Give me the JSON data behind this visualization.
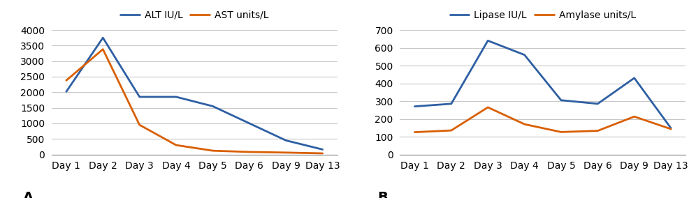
{
  "days": [
    "Day 1",
    "Day 2",
    "Day 3",
    "Day 4",
    "Day 5",
    "Day 6",
    "Day 9",
    "Day 13"
  ],
  "panel_A": {
    "ALT": [
      2020,
      3750,
      1850,
      1850,
      1550,
      1000,
      450,
      160
    ],
    "AST": [
      2380,
      3380,
      950,
      300,
      120,
      80,
      60,
      35
    ],
    "ALT_color": "#2e5fa3",
    "AST_color": "#d95f02",
    "ALT_label": "ALT IU/L",
    "AST_label": "AST units/L",
    "yticks": [
      0,
      500,
      1000,
      1500,
      2000,
      2500,
      3000,
      3500,
      4000
    ],
    "ylim": [
      0,
      4200
    ],
    "panel_label": "A"
  },
  "panel_B": {
    "Lipase": [
      270,
      285,
      640,
      560,
      305,
      285,
      430,
      148
    ],
    "Amylase": [
      125,
      135,
      265,
      170,
      126,
      133,
      213,
      143
    ],
    "Lipase_color": "#2e5fa3",
    "Amylase_color": "#d95f02",
    "Lipase_label": "Lipase IU/L",
    "Amylase_label": "Amylase units/L",
    "yticks": [
      0,
      100,
      200,
      300,
      400,
      500,
      600,
      700
    ],
    "ylim": [
      0,
      735
    ],
    "panel_label": "B"
  },
  "line_width": 2.0,
  "bg_color": "#ffffff",
  "grid_color": "#c8c8c8",
  "tick_fontsize": 10,
  "legend_fontsize": 10
}
